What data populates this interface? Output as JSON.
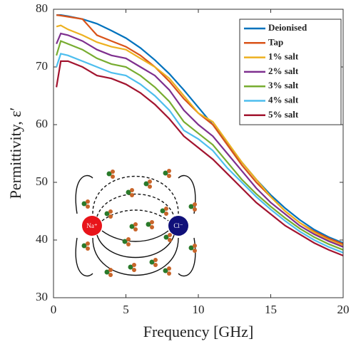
{
  "chart_data": {
    "type": "line",
    "xlabel": "Frequency [GHz]",
    "ylabel": "Permittivity, ε′",
    "x": [
      0.2,
      0.5,
      1,
      2,
      3,
      4,
      5,
      6,
      7,
      8,
      9,
      10,
      11,
      12,
      13,
      14,
      15,
      16,
      17,
      18,
      19,
      20
    ],
    "series": [
      {
        "name": "Deionised",
        "color": "#0072bd",
        "values": [
          79,
          79,
          78.8,
          78.3,
          77.5,
          76.3,
          75,
          73.3,
          71.2,
          68.8,
          66,
          63,
          60,
          56.7,
          53.5,
          50.5,
          47.8,
          45.5,
          43.5,
          41.8,
          40.5,
          39.5
        ]
      },
      {
        "name": "Tap",
        "color": "#d95319",
        "values": [
          79,
          78.9,
          78.7,
          78.3,
          75.5,
          74.5,
          73.5,
          72,
          70,
          67.5,
          64.5,
          62,
          60,
          56.5,
          53,
          50,
          47.5,
          45,
          43,
          41.5,
          40.3,
          39.3
        ]
      },
      {
        "name": "1% salt",
        "color": "#edb120",
        "values": [
          77,
          77.2,
          76.5,
          75.5,
          74.3,
          73.5,
          73,
          71.5,
          70,
          68,
          65,
          62,
          60.5,
          57,
          53.5,
          50.5,
          47.5,
          45,
          43,
          41.3,
          40,
          39
        ]
      },
      {
        "name": "2% salt",
        "color": "#7e2f8e",
        "values": [
          74,
          75.8,
          75.5,
          74.5,
          73,
          72,
          71.5,
          70,
          68.5,
          66,
          62.5,
          60,
          58,
          55,
          52,
          49,
          46.5,
          44.5,
          42.5,
          41,
          39.8,
          38.8
        ]
      },
      {
        "name": "3% salt",
        "color": "#77ac30",
        "values": [
          72,
          74.5,
          74,
          73,
          71.5,
          70.5,
          70,
          68.5,
          66.5,
          64,
          60.5,
          58.5,
          56.5,
          53.5,
          50.5,
          48,
          45.8,
          43.8,
          42,
          40.5,
          39.3,
          38.3
        ]
      },
      {
        "name": "4% salt",
        "color": "#4dbeee",
        "values": [
          70,
          72.3,
          72,
          71,
          70,
          69,
          68.5,
          67,
          65,
          62.5,
          59,
          57.5,
          55.5,
          52.5,
          50,
          47.5,
          45.3,
          43.3,
          41.5,
          40,
          38.8,
          37.8
        ]
      },
      {
        "name": "5% salt",
        "color": "#a2142f",
        "values": [
          66.5,
          71,
          71,
          70,
          68.5,
          68,
          67,
          65.5,
          63.5,
          61,
          58,
          56,
          54,
          51.5,
          49,
          46.5,
          44.5,
          42.5,
          41,
          39.5,
          38.3,
          37.3
        ]
      }
    ],
    "xlim": [
      0,
      20
    ],
    "xticks": [
      0,
      5,
      10,
      15,
      20
    ],
    "ylim": [
      30,
      80
    ],
    "yticks": [
      30,
      40,
      50,
      60,
      70,
      80
    ],
    "legend": "upper right",
    "annotations": [
      "Na⁺",
      "Cl⁻"
    ]
  }
}
